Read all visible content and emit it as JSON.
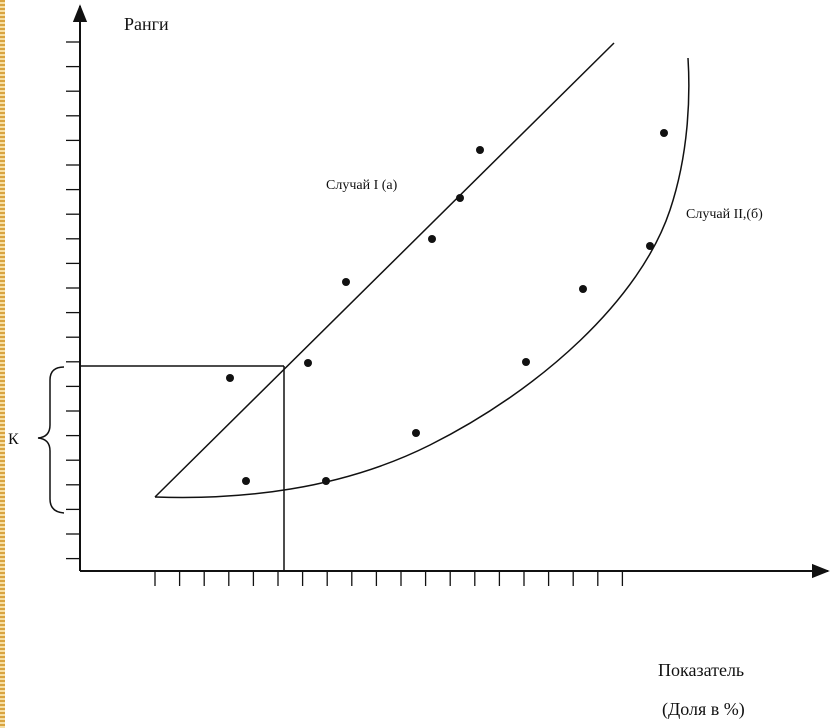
{
  "labels": {
    "y_axis": "Ранги",
    "case_one": "Случай I (а)",
    "case_two": "Случай II,(б)",
    "bracket": "К",
    "x_axis_line1": "Показатель",
    "x_axis_line2": "(Доля в %)"
  },
  "colors": {
    "ink": "#111111",
    "border_gold": "#d9a441"
  },
  "diagram": {
    "x_tick_count": 20,
    "y_tick_count": 22,
    "case_one_point_count": 8,
    "case_two_point_count": 7
  }
}
